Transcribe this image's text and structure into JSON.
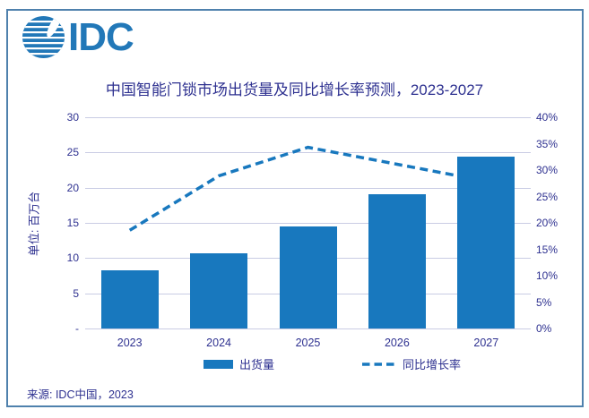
{
  "logo": {
    "text": "IDC"
  },
  "header": {
    "title": "中国智能门锁市场出货量及同比增长率预测，2023-2027"
  },
  "axes": {
    "y_left_label": "单位: 百万台",
    "left_ticks": [
      "30",
      "25",
      "20",
      "15",
      "10",
      "5",
      "-"
    ],
    "right_ticks": [
      "40%",
      "35%",
      "30%",
      "25%",
      "20%",
      "15%",
      "10%",
      "5%",
      "0%"
    ]
  },
  "legend": {
    "bar_label": "出货量",
    "line_label": "同比增长率"
  },
  "footer": {
    "source": "来源: IDC中国，2023"
  },
  "colors": {
    "bar": "#1878be",
    "line": "#1878be",
    "text": "#2e3190",
    "grid": "#c9cce4",
    "frame": "#4f81ad",
    "logo": "#2278b8"
  },
  "chart_data": {
    "type": "bar",
    "title": "中国智能门锁市场出货量及同比增长率预测，2023-2027",
    "categories": [
      "2023",
      "2024",
      "2025",
      "2026",
      "2027"
    ],
    "series": [
      {
        "name": "出货量",
        "type": "bar",
        "axis": "left",
        "unit": "百万台",
        "values": [
          8.3,
          10.7,
          14.5,
          19.1,
          24.4
        ]
      },
      {
        "name": "同比增长率",
        "type": "line",
        "axis": "right",
        "unit": "%",
        "values": [
          18.6,
          28.9,
          34.3,
          31.1,
          27.9
        ]
      }
    ],
    "ylabel_left": "单位: 百万台",
    "ylim_left": [
      0,
      30
    ],
    "ylim_right": [
      0,
      40
    ],
    "grid": true,
    "legend_position": "bottom",
    "source": "IDC中国, 2023"
  }
}
